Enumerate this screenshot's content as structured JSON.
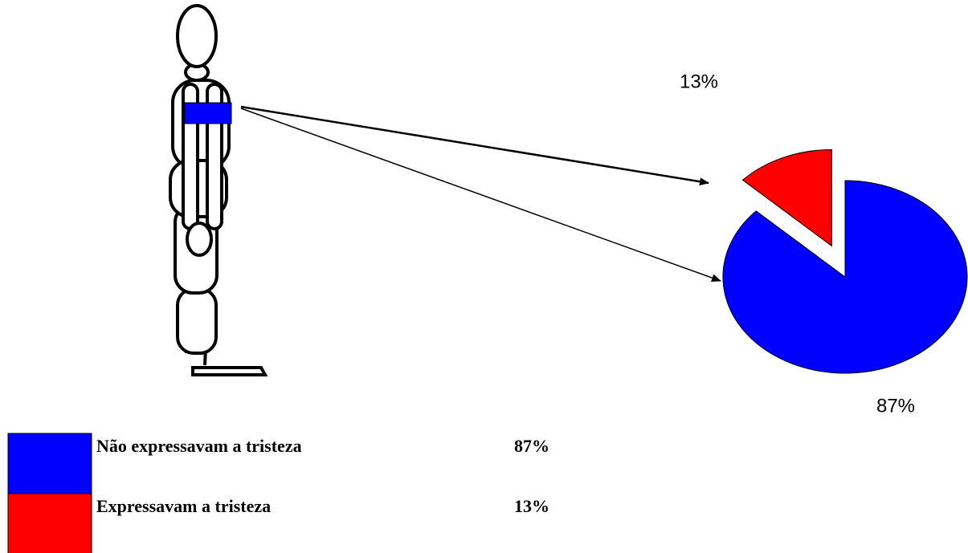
{
  "chart_data": {
    "type": "pie",
    "categories": [
      "Não expressavam a tristeza",
      "Expressavam a tristeza"
    ],
    "values": [
      87,
      13
    ],
    "value_labels": [
      "87%",
      "13%"
    ],
    "colors": [
      "#0000ff",
      "#ff0000"
    ],
    "exploded": [
      false,
      true
    ]
  }
}
